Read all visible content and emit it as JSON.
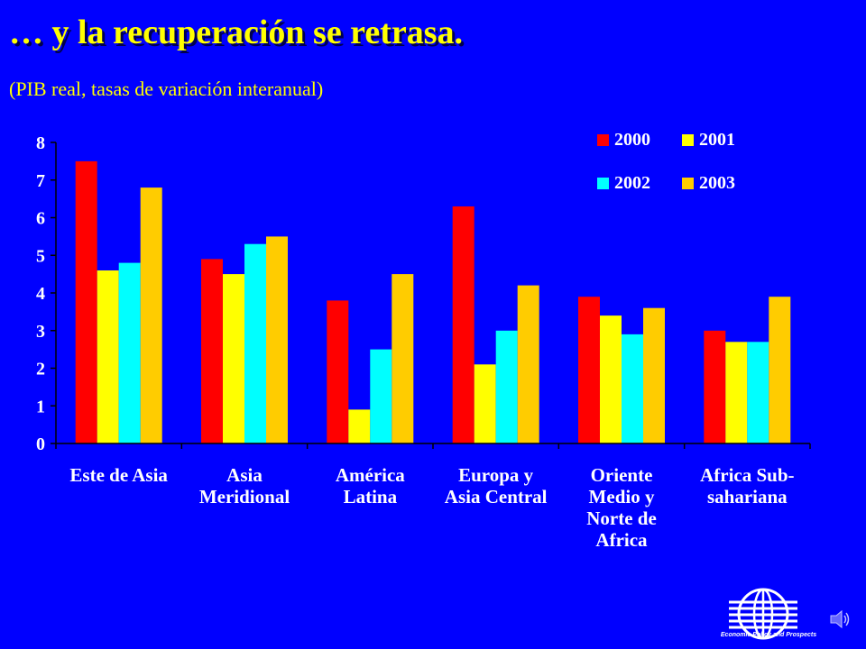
{
  "slide": {
    "title": "… y la recuperación se retrasa.",
    "subtitle": "(PIB real, tasas de variación interanual)"
  },
  "colors": {
    "background": "#0000ff",
    "title": "#ffff00",
    "axis": "#000000",
    "text": "#ffffff",
    "series": [
      "#ff0000",
      "#ffff00",
      "#00ffff",
      "#ffcc00"
    ]
  },
  "chart_data": {
    "type": "bar",
    "categories": [
      [
        "Este de Asia"
      ],
      [
        "Asia",
        "Meridional"
      ],
      [
        "América",
        "Latina"
      ],
      [
        "Europa y",
        "Asia Central"
      ],
      [
        "Oriente",
        "Medio y",
        "Norte de",
        "Africa"
      ],
      [
        "Africa Sub-",
        "sahariana"
      ]
    ],
    "series": [
      {
        "name": "2000",
        "values": [
          7.5,
          4.9,
          3.8,
          6.3,
          3.9,
          3.0
        ]
      },
      {
        "name": "2001",
        "values": [
          4.6,
          4.5,
          0.9,
          2.1,
          3.4,
          2.7
        ]
      },
      {
        "name": "2002",
        "values": [
          4.8,
          5.3,
          2.5,
          3.0,
          2.9,
          2.7
        ]
      },
      {
        "name": "2003",
        "values": [
          6.8,
          5.5,
          4.5,
          4.2,
          3.6,
          3.9
        ]
      }
    ],
    "ylim": [
      0,
      8
    ],
    "yticks": [
      "0",
      "1",
      "2",
      "3",
      "4",
      "5",
      "6",
      "7",
      "8"
    ],
    "grid": false,
    "legend_position": "top-right"
  },
  "footer": {
    "logo_caption": "Economic Policy and Prospects",
    "logo_icon": "globe-logo-icon",
    "sound_icon": "speaker-icon"
  }
}
